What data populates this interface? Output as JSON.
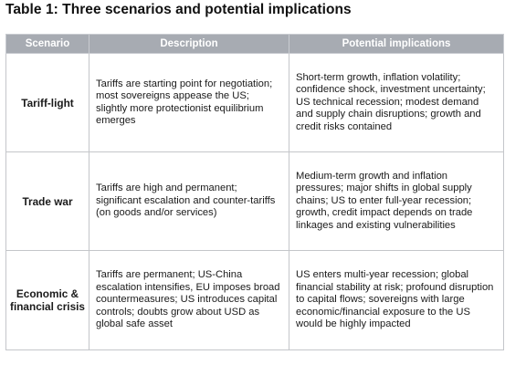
{
  "title": "Table 1: Three scenarios and potential implications",
  "table": {
    "headers": [
      "Scenario",
      "Description",
      "Potential implications"
    ],
    "rows": [
      {
        "scenario": "Tariff-light",
        "description": "Tariffs are starting point for negotiation; most sovereigns appease the US; slightly more protectionist equilibrium emerges",
        "implications": "Short-term growth, inflation volatility; confidence shock, investment uncertainty; US technical recession; modest demand and supply chain disruptions; growth and credit risks contained"
      },
      {
        "scenario": "Trade war",
        "description": "Tariffs are high and permanent; significant escalation and counter-tariffs (on goods and/or services)",
        "implications": "Medium-term growth and inflation pressures; major shifts in global supply chains; US to enter full-year recession; growth, credit impact depends on trade linkages and existing vulnerabilities"
      },
      {
        "scenario": "Economic & financial crisis",
        "description": "Tariffs are permanent; US-China escalation intensifies, EU imposes broad countermeasures; US introduces capital controls; doubts grow about USD as global safe asset",
        "implications": "US enters multi-year recession; global financial stability at risk; profound disruption to capital flows; sovereigns with large economic/financial exposure to the US would be highly impacted"
      }
    ]
  }
}
